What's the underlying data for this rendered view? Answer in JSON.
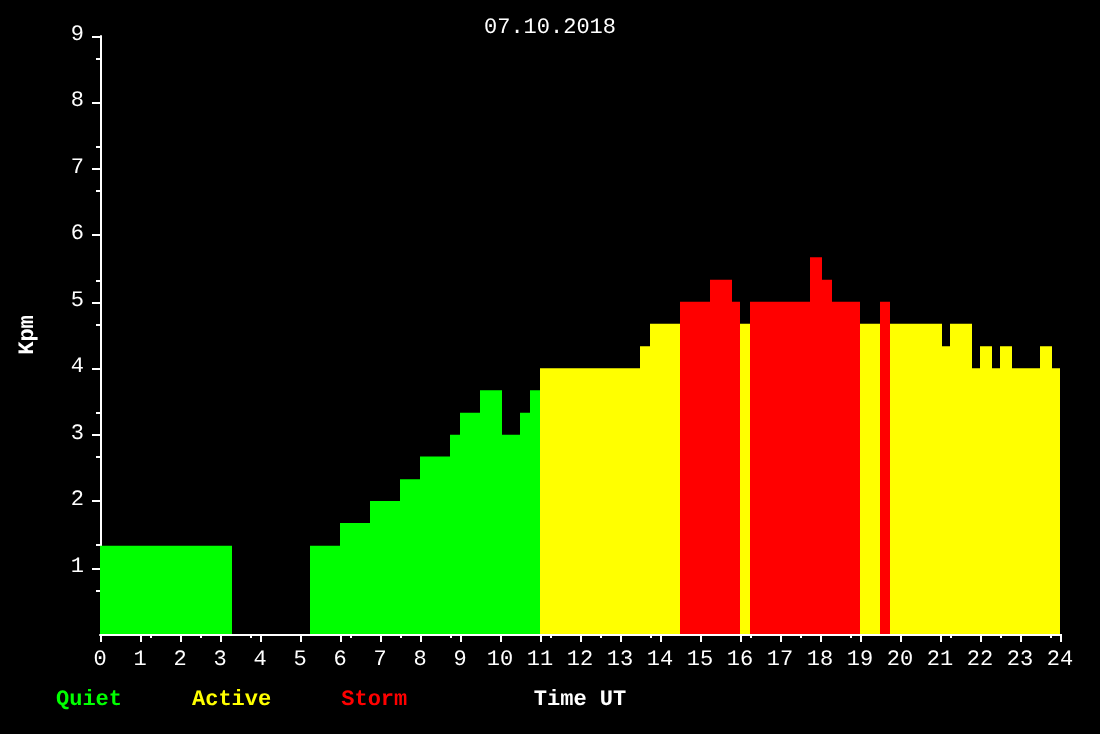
{
  "chart_data": {
    "type": "histogram",
    "title": "07.10.2018",
    "xlabel": "Time UT",
    "ylabel": "Kpm",
    "bins": [
      0,
      3.3,
      5.25,
      6,
      6.75,
      7.5,
      8,
      8.75,
      9,
      9.5,
      10.05,
      10.5,
      10.75,
      11,
      13.5,
      13.75,
      14.5,
      15.25,
      15.8,
      16,
      16.25,
      17.75,
      18.05,
      18.3,
      19,
      19.5,
      19.75,
      21.05,
      21.25,
      21.8,
      22,
      22.3,
      22.5,
      22.8,
      23.5,
      23.8,
      24
    ],
    "series": [
      {
        "name": "Quiet",
        "color": "#00ff00",
        "values": [
          1.33,
          null,
          1.33,
          1.67,
          2,
          2.33,
          2.67,
          3,
          3.33,
          3.67,
          3,
          3.33,
          3.67,
          null,
          null,
          null,
          null,
          null,
          null,
          null,
          null,
          null,
          null,
          null,
          null,
          null,
          null,
          null,
          null,
          null,
          null,
          null,
          null,
          null,
          null,
          null
        ]
      },
      {
        "name": "Active",
        "color": "#ffff00",
        "values": [
          null,
          null,
          null,
          null,
          null,
          null,
          null,
          null,
          null,
          null,
          null,
          null,
          null,
          4,
          4.33,
          4.67,
          null,
          null,
          null,
          4.67,
          null,
          null,
          null,
          null,
          4.67,
          null,
          4.67,
          4.33,
          4.67,
          4,
          4.33,
          4,
          4.33,
          4,
          4.33,
          4
        ]
      },
      {
        "name": "Storm",
        "color": "#ff0000",
        "values": [
          null,
          null,
          null,
          null,
          null,
          null,
          null,
          null,
          null,
          null,
          null,
          null,
          null,
          null,
          null,
          null,
          5,
          5.33,
          5,
          null,
          5,
          5.67,
          5.33,
          5,
          null,
          5,
          null,
          null,
          null,
          null,
          null,
          null,
          null,
          null,
          null,
          null
        ]
      }
    ],
    "xlim": [
      0,
      24
    ],
    "xticks": [
      0,
      1,
      2,
      3,
      4,
      5,
      6,
      7,
      8,
      9,
      10,
      11,
      12,
      13,
      14,
      15,
      16,
      17,
      18,
      19,
      20,
      21,
      22,
      23,
      24
    ],
    "ylim": [
      0,
      9
    ],
    "yticks": [
      1,
      2,
      3,
      4,
      5,
      6,
      7,
      8,
      9
    ],
    "legend": "bottom left",
    "grid": false
  }
}
